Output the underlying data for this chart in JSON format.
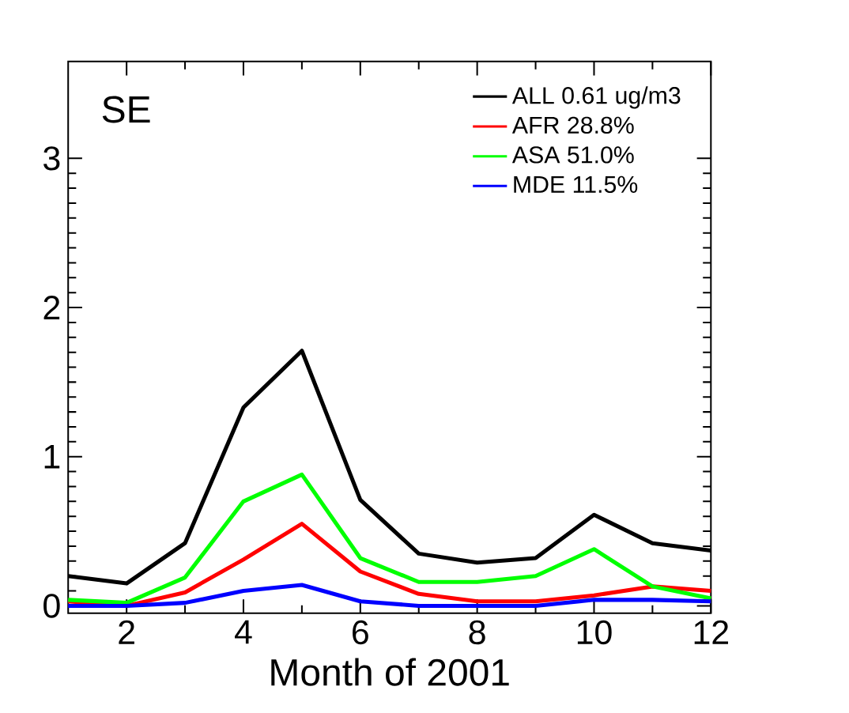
{
  "chart_data": {
    "type": "line",
    "xlabel": "Month of 2001",
    "annotations": [
      "SE"
    ],
    "x": [
      1,
      2,
      3,
      4,
      5,
      6,
      7,
      8,
      9,
      10,
      11,
      12
    ],
    "xlim": [
      1,
      12
    ],
    "xticks": [
      2,
      4,
      6,
      8,
      10,
      12
    ],
    "ylim": [
      -0.05,
      3.65
    ],
    "yticks": [
      0,
      1,
      2,
      3
    ],
    "legend": "top right",
    "grid": false,
    "marker": "none",
    "line_style": "solid",
    "series": [
      {
        "name": "ALL 0.61 ug/m3",
        "color": "#000000",
        "values": [
          0.2,
          0.15,
          0.42,
          1.33,
          1.71,
          0.71,
          0.35,
          0.29,
          0.32,
          0.61,
          0.42,
          0.37
        ]
      },
      {
        "name": "AFR 28.8%",
        "color": "#ff0000",
        "values": [
          0.03,
          0.0,
          0.09,
          0.31,
          0.55,
          0.23,
          0.08,
          0.03,
          0.03,
          0.07,
          0.13,
          0.1
        ]
      },
      {
        "name": "ASA 51.0%",
        "color": "#00ff00",
        "values": [
          0.04,
          0.02,
          0.19,
          0.7,
          0.88,
          0.32,
          0.16,
          0.16,
          0.2,
          0.38,
          0.13,
          0.05
        ]
      },
      {
        "name": "MDE 11.5%",
        "color": "#0000ff",
        "values": [
          0.0,
          0.0,
          0.02,
          0.1,
          0.14,
          0.03,
          0.0,
          0.0,
          0.0,
          0.04,
          0.04,
          0.03
        ]
      }
    ]
  }
}
